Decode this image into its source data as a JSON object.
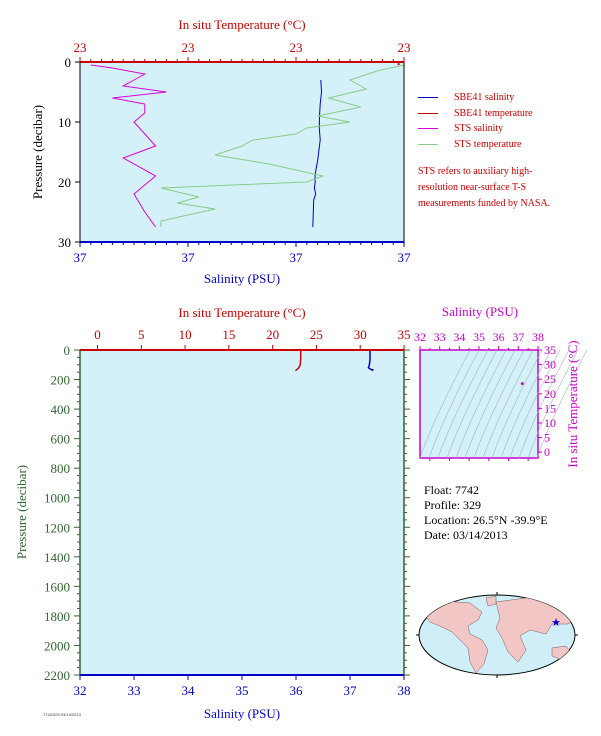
{
  "chart_data": [
    {
      "type": "line",
      "panel": "near-surface profile",
      "top_axis_label": "In situ Temperature (°C)",
      "top_ticks": [
        "23",
        "23",
        "23",
        "23"
      ],
      "bottom_axis_label": "Salinity (PSU)",
      "bottom_ticks": [
        "37",
        "37",
        "37",
        "37"
      ],
      "ylabel": "Pressure (decibar)",
      "y_ticks": [
        0,
        10,
        20,
        30
      ],
      "ylim": [
        30,
        0
      ],
      "xlim_salinity": [
        37.0,
        37.15
      ],
      "xlim_temperature": [
        22.7,
        23.3
      ],
      "series": [
        {
          "name": "SBE41 salinity",
          "color": "#0000cc",
          "x": [
            37.1115,
            37.1118,
            37.1112,
            37.1109,
            37.1108,
            37.1112,
            37.1105,
            37.1102,
            37.1097,
            37.1092,
            37.1088,
            37.1089,
            37.1085,
            37.1091,
            37.1082,
            37.1078
          ],
          "y": [
            3,
            5,
            7,
            9,
            11,
            13,
            15,
            16,
            17,
            18,
            19,
            20,
            21,
            22,
            23,
            27.5
          ]
        },
        {
          "name": "SBE41 temperature",
          "color": "#cc0000",
          "x": [
            23.29,
            23.29
          ],
          "y": [
            0.2,
            0.5
          ]
        },
        {
          "name": "STS salinity",
          "color": "#dd00dd",
          "x": [
            37.005,
            37.015,
            37.03,
            37.025,
            37.02,
            37.04,
            37.015,
            37.03,
            37.03,
            37.025,
            37.03,
            37.035,
            37.02,
            37.035,
            37.025,
            37.03,
            37.035
          ],
          "y": [
            0.5,
            1,
            2,
            3,
            4,
            5,
            6,
            7,
            8.5,
            10,
            12,
            14,
            16,
            19,
            22,
            25,
            27.5
          ]
        },
        {
          "name": "STS temperature",
          "color": "#88cc88",
          "x": [
            23.3,
            23.25,
            23.2,
            23.23,
            23.16,
            23.22,
            23.14,
            23.2,
            23.12,
            23.1,
            23.02,
            23.0,
            22.95,
            23.05,
            23.1,
            23.15,
            23.12,
            22.85,
            22.92,
            22.88,
            22.95,
            22.9,
            22.85,
            22.85
          ],
          "y": [
            0.5,
            1.5,
            3,
            4.5,
            6,
            7.5,
            9,
            10,
            11,
            12,
            13,
            14,
            15.5,
            17,
            18,
            19,
            20,
            21,
            22.5,
            23.5,
            24.5,
            25.5,
            26.5,
            27.5
          ]
        }
      ]
    },
    {
      "type": "line",
      "panel": "full profile",
      "top_axis_label": "In situ Temperature (°C)",
      "top_ticks": [
        0,
        5,
        10,
        15,
        20,
        25,
        30,
        35
      ],
      "xlim_temperature": [
        -2,
        35
      ],
      "bottom_axis_label": "Salinity (PSU)",
      "bottom_ticks": [
        32,
        33,
        34,
        35,
        36,
        37,
        38
      ],
      "xlim_salinity": [
        32,
        38
      ],
      "ylabel": "Pressure (decibar)",
      "y_ticks": [
        0,
        200,
        400,
        600,
        800,
        1000,
        1200,
        1400,
        1600,
        1800,
        2000,
        2200
      ],
      "ylim": [
        2200,
        0
      ],
      "series": [
        {
          "color": "#cc0000",
          "axis": "temperature",
          "x": [
            23.2,
            23.2,
            23.15,
            23.0,
            22.8,
            22.6
          ],
          "y": [
            0,
            60,
            100,
            120,
            130,
            140
          ]
        },
        {
          "color": "#0000cc",
          "axis": "salinity",
          "x": [
            37.37,
            37.37,
            37.36,
            37.34,
            37.38,
            37.42,
            37.4
          ],
          "y": [
            0,
            60,
            100,
            120,
            130,
            135,
            140
          ]
        }
      ]
    },
    {
      "type": "scatter",
      "panel": "T-S diagram",
      "top_axis_label": "Salinity (PSU)",
      "top_ticks": [
        32,
        33,
        34,
        35,
        36,
        37,
        38
      ],
      "xlim": [
        32,
        38
      ],
      "right_axis_label": "In situ Temperature (°C)",
      "right_ticks": [
        0,
        5,
        10,
        15,
        20,
        25,
        30,
        35
      ],
      "ylim": [
        -2,
        35
      ],
      "points": [
        {
          "salinity": 37.2,
          "temperature": 23.5
        }
      ]
    }
  ],
  "legend": {
    "items": [
      {
        "label": "SBE41 salinity",
        "color": "#0000cc"
      },
      {
        "label": "SBE41 temperature",
        "color": "#cc0000"
      },
      {
        "label": "STS salinity",
        "color": "#dd00dd"
      },
      {
        "label": "STS temperature",
        "color": "#88cc88"
      }
    ],
    "note": "STS refers to auxiliary high-resolution near-surface T-S measurements funded by NASA."
  },
  "info": {
    "float": "Float:  7742",
    "profile": "Profile:  329",
    "location": "Location:  26.5°N  -39.9°E",
    "date": "Date:  03/14/2013"
  },
  "stamp": "7742/329 03/14/2013",
  "colors": {
    "plot_bg": "#d4f1f9",
    "temperature_axis": "#cc0000",
    "salinity_axis": "#0000cc",
    "pressure_axis": "#336633",
    "ts_axis": "#cc00cc"
  }
}
